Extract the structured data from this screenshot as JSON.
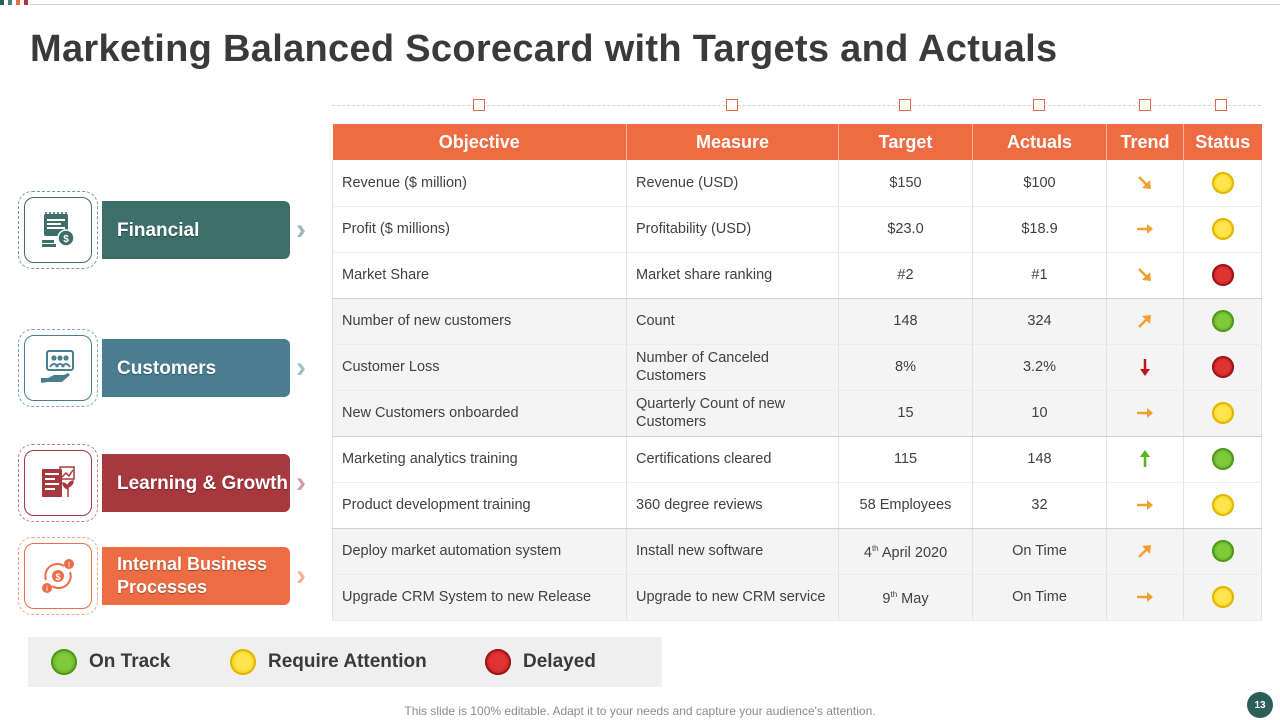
{
  "title": "Marketing Balanced Scorecard with Targets and Actuals",
  "table": {
    "headers": [
      "Objective",
      "Measure",
      "Target",
      "Actuals",
      "Trend",
      "Status"
    ],
    "rows": [
      {
        "objective": "Revenue ($ million)",
        "measure": "Revenue (USD)",
        "target": "$150",
        "actuals": "$100",
        "trend": "down-right",
        "status": "yellow"
      },
      {
        "objective": "Profit ($ millions)",
        "measure": "Profitability (USD)",
        "target": "$23.0",
        "actuals": "$18.9",
        "trend": "right",
        "status": "yellow"
      },
      {
        "objective": "Market Share",
        "measure": "Market share ranking",
        "target": "#2",
        "actuals": "#1",
        "trend": "down-right",
        "status": "red"
      },
      {
        "objective": "Number of new customers",
        "measure": "Count",
        "target": "148",
        "actuals": "324",
        "trend": "up-right",
        "status": "green"
      },
      {
        "objective": "Customer Loss",
        "measure": "Number of Canceled Customers",
        "target": "8%",
        "actuals": "3.2%",
        "trend": "down",
        "status": "red"
      },
      {
        "objective": "New Customers onboarded",
        "measure": "Quarterly Count of new Customers",
        "target": "15",
        "actuals": "10",
        "trend": "right",
        "status": "yellow"
      },
      {
        "objective": "Marketing analytics training",
        "measure": "Certifications cleared",
        "target": "115",
        "actuals": "148",
        "trend": "up",
        "status": "green"
      },
      {
        "objective": "Product development training",
        "measure": "360 degree reviews",
        "target": "58 Employees",
        "actuals": "32",
        "trend": "right",
        "status": "yellow"
      },
      {
        "objective": "Deploy market automation system",
        "measure": "Install new software",
        "target": "4",
        "target_sup": "th",
        "target_suffix": " April 2020",
        "actuals": "On Time",
        "trend": "up-right",
        "status": "green"
      },
      {
        "objective": "Upgrade CRM System to new Release",
        "measure": "Upgrade to new CRM service",
        "target": "9",
        "target_sup": "th",
        "target_suffix": " May",
        "actuals": "On Time",
        "trend": "right",
        "status": "yellow"
      }
    ]
  },
  "categories": [
    {
      "label": "Financial",
      "icon": "finance-icon",
      "color": "#3d6e6a",
      "light": "#6f9a97"
    },
    {
      "label": "Customers",
      "icon": "customers-icon",
      "color": "#4a7d90",
      "light": "#7aa6b6"
    },
    {
      "label": "Learning & Growth",
      "icon": "learning-growth-icon",
      "color": "#a7383d",
      "light": "#c97c80"
    },
    {
      "label": "Internal Business Processes",
      "icon": "internal-process-icon",
      "color": "#ee6c44",
      "light": "#f2a285"
    }
  ],
  "legend": [
    {
      "label": "On Track",
      "status": "green"
    },
    {
      "label": "Require Attention",
      "status": "yellow"
    },
    {
      "label": "Delayed",
      "status": "red"
    }
  ],
  "colors": {
    "header": "#ef6b41",
    "trend_arrow": "#f0a030",
    "trend_down": "#c0141b",
    "trend_up": "#52b61c"
  },
  "footer": "This slide is 100% editable. Adapt it to your needs and capture your audience's attention.",
  "page_number": "13"
}
